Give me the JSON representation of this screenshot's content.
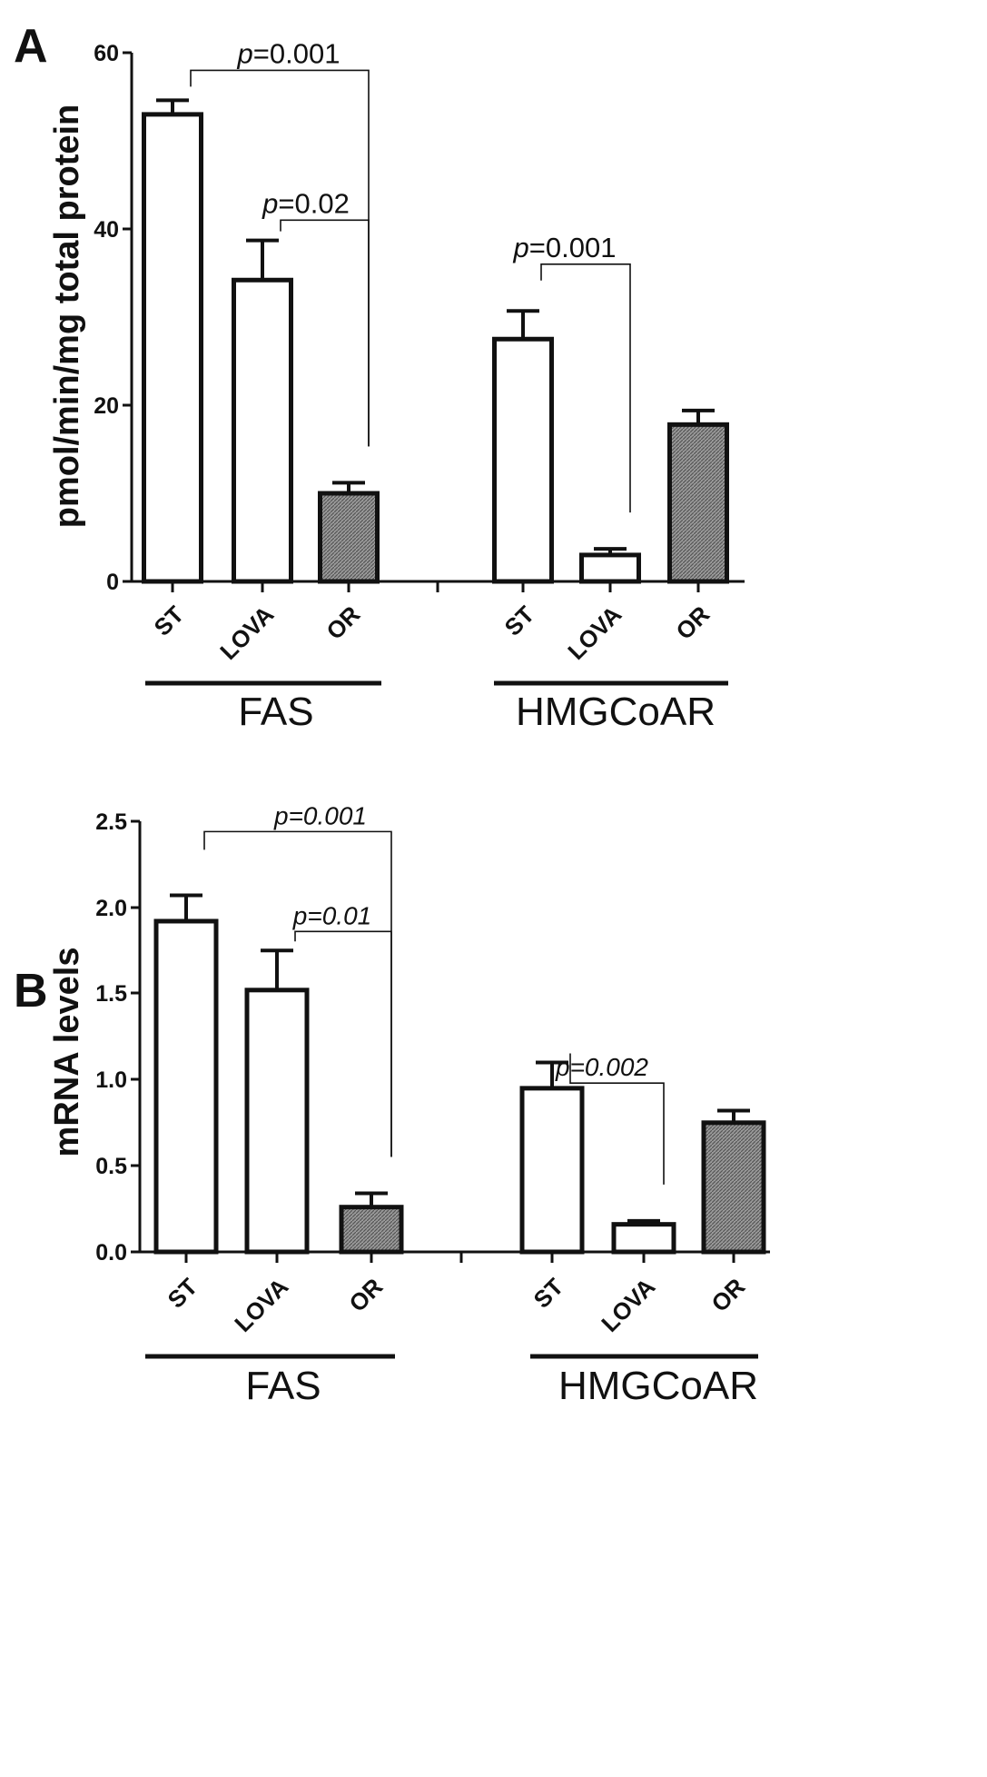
{
  "colors": {
    "open_bar": "#ffffff",
    "hatched_bar": "#8a8a8a",
    "stroke": "#111111"
  },
  "chart_data": [
    {
      "type": "bar",
      "panel": "A",
      "ylabel": "pmol/min/mg total protein",
      "ylim": [
        0,
        60
      ],
      "yticks": [
        "0",
        "20",
        "40",
        "60"
      ],
      "groups": [
        "FAS",
        "HMGCoAR"
      ],
      "categories": [
        "ST",
        "LOVA",
        "OR",
        "ST",
        "LOVA",
        "OR"
      ],
      "values": [
        53,
        34.2,
        10,
        27.5,
        3,
        17.8
      ],
      "errors": [
        1.6,
        4.5,
        1.2,
        3.2,
        0.7,
        1.6
      ],
      "fills": [
        "open",
        "open",
        "hatched",
        "open",
        "open",
        "hatched"
      ],
      "annotations": [
        {
          "prefix": "p",
          "value": "=0.001",
          "from": 0,
          "to": 2,
          "y": 58
        },
        {
          "prefix": "p",
          "value": "=0.02",
          "from": 1,
          "to": 2,
          "y": 41
        },
        {
          "prefix": "p",
          "value": "=0.001",
          "from": 3,
          "to": 4,
          "y": 36
        }
      ]
    },
    {
      "type": "bar",
      "panel": "B",
      "ylabel": "mRNA levels",
      "ylim": [
        0,
        2.5
      ],
      "yticks": [
        "0.0",
        "0.5",
        "1.0",
        "1.5",
        "2.0",
        "2.5"
      ],
      "groups": [
        "FAS",
        "HMGCoAR"
      ],
      "categories": [
        "ST",
        "LOVA",
        "OR",
        "ST",
        "LOVA",
        "OR"
      ],
      "values": [
        1.92,
        1.52,
        0.26,
        0.95,
        0.16,
        0.75
      ],
      "errors": [
        0.15,
        0.23,
        0.08,
        0.15,
        0.02,
        0.07
      ],
      "fills": [
        "open",
        "open",
        "hatched",
        "open",
        "open",
        "hatched"
      ],
      "annotations": [
        {
          "prefix": "p",
          "value": "=0.001",
          "from": 0,
          "to": 2,
          "y": 2.44
        },
        {
          "prefix": "p",
          "value": "=0.01",
          "from": 1,
          "to": 2,
          "y": 1.86
        },
        {
          "prefix": "p",
          "value": "=0.002",
          "from": 3,
          "to": 4,
          "y": 0.98
        }
      ]
    }
  ]
}
